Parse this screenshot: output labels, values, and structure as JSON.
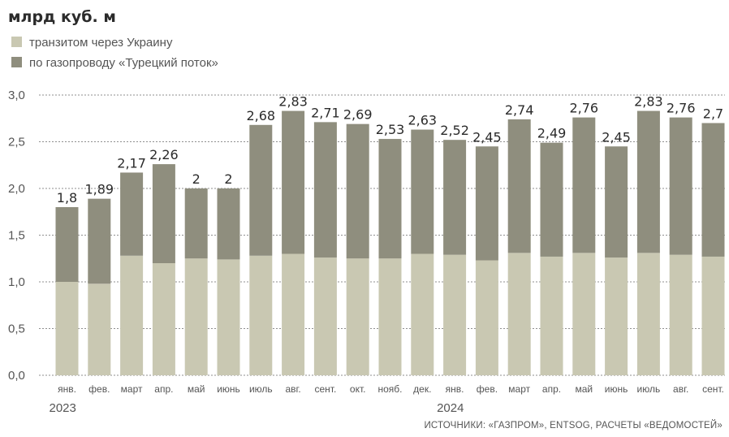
{
  "chart_data": {
    "type": "bar",
    "stacked": true,
    "unit_label": "млрд куб. м",
    "legend": [
      {
        "label": "транзитом через Украину",
        "color": "#c9c8b2"
      },
      {
        "label": "по газопроводу «Турецкий поток»",
        "color": "#8f8e7e"
      }
    ],
    "legend_placement": "top-left",
    "y_ticks": [
      "3,0",
      "2,5",
      "2,0",
      "1,5",
      "1,0",
      "0,5",
      "0,0"
    ],
    "ylim": [
      0,
      3
    ],
    "grid": true,
    "categories": [
      "янв.",
      "фев.",
      "март",
      "апр.",
      "май",
      "июнь",
      "июль",
      "авг.",
      "сент.",
      "окт.",
      "нояб.",
      "дек.",
      "янв.",
      "фев.",
      "март",
      "апр.",
      "май",
      "июнь",
      "июль",
      "авг.",
      "сент."
    ],
    "year_labels": [
      {
        "label": "2023",
        "start_index": 0
      },
      {
        "label": "2024",
        "start_index": 12
      }
    ],
    "series": [
      {
        "name": "транзитом через Украину",
        "values": [
          1.0,
          0.98,
          1.28,
          1.2,
          1.25,
          1.24,
          1.28,
          1.3,
          1.26,
          1.25,
          1.25,
          1.3,
          1.29,
          1.23,
          1.31,
          1.27,
          1.31,
          1.26,
          1.31,
          1.29,
          1.27
        ]
      },
      {
        "name": "по газопроводу «Турецкий поток»",
        "values": [
          0.8,
          0.91,
          0.89,
          1.06,
          0.75,
          0.76,
          1.4,
          1.53,
          1.45,
          1.44,
          1.28,
          1.33,
          1.23,
          1.22,
          1.43,
          1.22,
          1.45,
          1.19,
          1.52,
          1.47,
          1.43
        ]
      }
    ],
    "totals": [
      1.8,
      1.89,
      2.17,
      2.26,
      2,
      2,
      2.68,
      2.83,
      2.71,
      2.69,
      2.53,
      2.63,
      2.52,
      2.45,
      2.74,
      2.49,
      2.76,
      2.45,
      2.83,
      2.76,
      2.7
    ],
    "total_labels": [
      "1,8",
      "1,89",
      "2,17",
      "2,26",
      "2",
      "2",
      "2,68",
      "2,83",
      "2,71",
      "2,69",
      "2,53",
      "2,63",
      "2,52",
      "2,45",
      "2,74",
      "2,49",
      "2,76",
      "2,45",
      "2,83",
      "2,76",
      "2,7"
    ]
  },
  "source": "ИСТОЧНИКИ: «ГАЗПРОМ», ENTSOG, РАСЧЕТЫ «ВЕДОМОСТЕЙ»"
}
